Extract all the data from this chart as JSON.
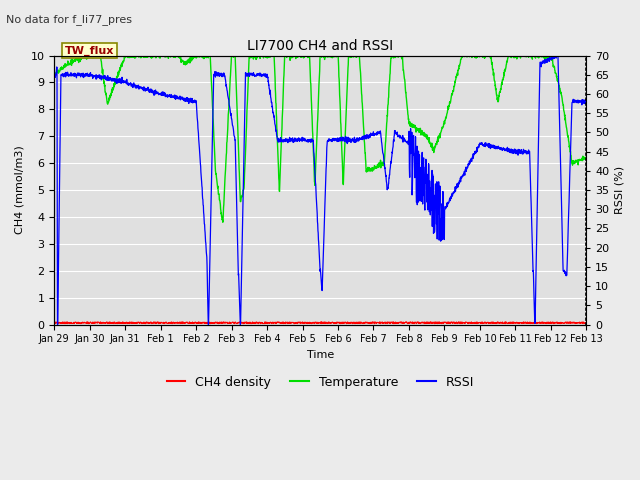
{
  "title": "LI7700 CH4 and RSSI",
  "subtitle": "No data for f_li77_pres",
  "box_label": "TW_flux",
  "xlabel": "Time",
  "ylabel_left": "CH4 (mmol/m3)",
  "ylabel_right": "RSSI (%)",
  "ylim_left": [
    0.0,
    10.0
  ],
  "ylim_right": [
    0,
    70
  ],
  "x_tick_labels": [
    "Jan 29",
    "Jan 30",
    "Jan 31",
    "Feb 1",
    "Feb 2",
    "Feb 3",
    "Feb 4",
    "Feb 5",
    "Feb 6",
    "Feb 7",
    "Feb 8",
    "Feb 9",
    "Feb 10",
    "Feb 11",
    "Feb 12",
    "Feb 13"
  ],
  "yticks_left": [
    0.0,
    1.0,
    2.0,
    3.0,
    4.0,
    5.0,
    6.0,
    7.0,
    8.0,
    9.0,
    10.0
  ],
  "yticks_right": [
    0,
    5,
    10,
    15,
    20,
    25,
    30,
    35,
    40,
    45,
    50,
    55,
    60,
    65,
    70
  ],
  "bg_color": "#ebebeb",
  "plot_bg_color": "#e0e0e0",
  "grid_color": "#ffffff",
  "ch4_color": "#ff0000",
  "temp_color": "#00dd00",
  "rssi_color": "#0000ff",
  "legend_labels": [
    "CH4 density",
    "Temperature",
    "RSSI"
  ],
  "box_facecolor": "#ffffcc",
  "box_edgecolor": "#888800",
  "box_textcolor": "#990000",
  "subtitle_color": "#333333",
  "figsize": [
    6.4,
    4.8
  ],
  "dpi": 100
}
